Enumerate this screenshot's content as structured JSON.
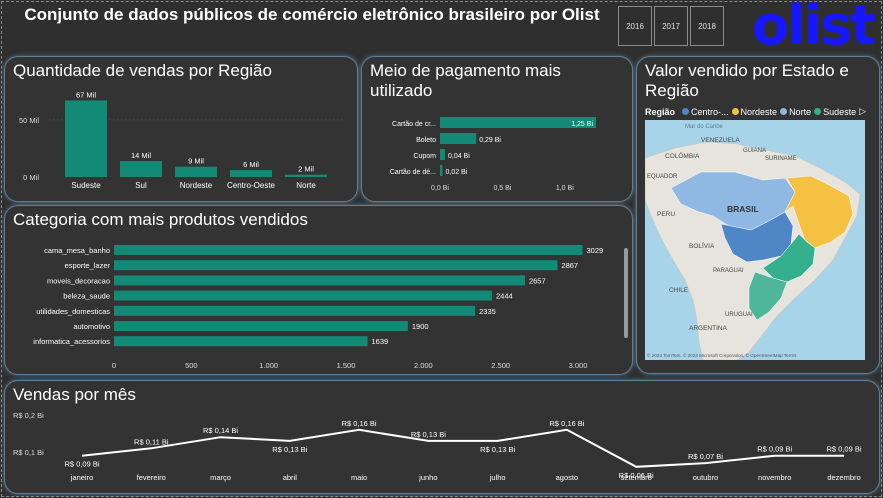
{
  "header": {
    "title": "Conjunto de dados públicos de comércio eletrônico brasileiro por Olist",
    "year_buttons": [
      "2016",
      "2017",
      "2018"
    ],
    "logo_text": "olist"
  },
  "colors": {
    "bar": "#128a75",
    "background": "#2f2f2f",
    "card": "#333333",
    "logo": "#1616ff",
    "centro_oeste": "#4f86c6",
    "nordeste": "#f5c142",
    "norte": "#8fb9e3",
    "sudeste": "#34b08f"
  },
  "chart_data": [
    {
      "id": "vendas_regiao",
      "type": "bar",
      "title": "Quantidade de vendas por Região",
      "categories": [
        "Sudeste",
        "Sul",
        "Nordeste",
        "Centro-Oeste",
        "Norte"
      ],
      "values": [
        67,
        14,
        9,
        6,
        2
      ],
      "data_labels": [
        "67 Mil",
        "14 Mil",
        "9 Mil",
        "6 Mil",
        "2 Mil"
      ],
      "y_ticks": [
        "0 Mil",
        "50 Mil"
      ],
      "ylim": [
        0,
        70
      ]
    },
    {
      "id": "meio_pagamento",
      "type": "bar",
      "orientation": "horizontal",
      "title": "Meio de pagamento mais utilizado",
      "categories": [
        "Cartão de cr...",
        "Boleto",
        "Cupom",
        "Cartão de dé..."
      ],
      "values": [
        1.25,
        0.29,
        0.04,
        0.02
      ],
      "data_labels": [
        "1,25 Bi",
        "0,29 Bi",
        "0,04 Bi",
        "0,02 Bi"
      ],
      "x_ticks": [
        "0,0 Bi",
        "0,5 Bi",
        "1,0 Bi"
      ],
      "xlim": [
        0,
        1.25
      ]
    },
    {
      "id": "categoria_produtos",
      "type": "bar",
      "orientation": "horizontal",
      "title": "Categoria com mais produtos vendidos",
      "categories": [
        "cama_mesa_banho",
        "esporte_lazer",
        "moveis_decoracao",
        "beleza_saude",
        "utilidades_domesticas",
        "automotivo",
        "informatica_acessorios"
      ],
      "values": [
        3029,
        2867,
        2657,
        2444,
        2335,
        1900,
        1639
      ],
      "data_labels": [
        "3029",
        "2867",
        "2657",
        "2444",
        "2335",
        "1900",
        "1639"
      ],
      "x_ticks": [
        "0",
        "500",
        "1.000",
        "1.500",
        "2.000",
        "2.500",
        "3.000"
      ],
      "xlim": [
        0,
        3000
      ]
    },
    {
      "id": "vendas_mes",
      "type": "line",
      "title": "Vendas por mês",
      "categories": [
        "janeiro",
        "fevereiro",
        "março",
        "abril",
        "maio",
        "junho",
        "julho",
        "agosto",
        "setembro",
        "outubro",
        "novembro",
        "dezembro"
      ],
      "values": [
        0.09,
        0.11,
        0.14,
        0.13,
        0.16,
        0.13,
        0.13,
        0.16,
        0.06,
        0.07,
        0.09,
        0.09
      ],
      "data_labels": [
        "R$ 0,09 Bi",
        "R$ 0,11 Bi",
        "R$ 0,14 Bi",
        "R$ 0,13 Bi",
        "R$ 0,16 Bi",
        "R$ 0,13 Bi",
        "R$ 0,13 Bi",
        "R$ 0,16 Bi",
        "R$ 0,06 Bi",
        "R$ 0,07 Bi",
        "R$ 0,09 Bi",
        "R$ 0,09 Bi"
      ],
      "y_ticks": [
        "R$ 0,1 Bi",
        "R$ 0,2 Bi"
      ]
    }
  ],
  "map_panel": {
    "title": "Valor vendido por Estado e Região",
    "legend_title": "Região",
    "legend_items": [
      "Centro-...",
      "Nordeste",
      "Norte",
      "Sudeste"
    ],
    "sea_label": "Mar do Caribe",
    "country_labels": [
      "VENEZUELA",
      "COLÔMBIA",
      "GUIANA",
      "SURINAME",
      "EQUADOR",
      "BRASIL",
      "PERU",
      "BOLÍVIA",
      "PARAGUAI",
      "CHILE",
      "URUGUAI",
      "ARGENTINA"
    ],
    "attribution": "© 2023 TomTom, © 2023 Microsoft Corporation, © OpenStreetMap  Terms"
  }
}
